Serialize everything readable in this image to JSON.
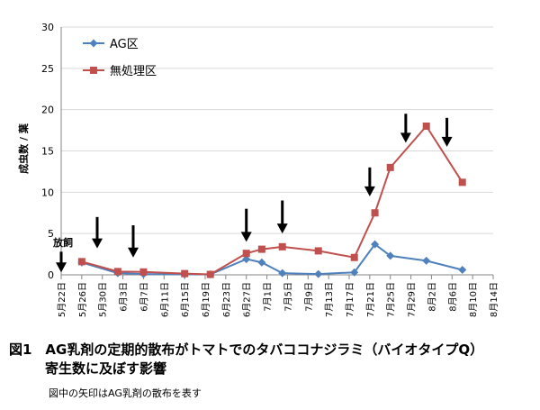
{
  "chart_data": {
    "type": "line",
    "ylabel": "成虫数 / 葉",
    "xlabel": "",
    "ylim": [
      0,
      30
    ],
    "yticks": [
      0,
      5,
      10,
      15,
      20,
      25,
      30
    ],
    "x_tick_labels": [
      "5月22日",
      "5月26日",
      "5月30日",
      "6月3日",
      "6月7日",
      "6月11日",
      "6月15日",
      "6月19日",
      "6月23日",
      "6月27日",
      "7月1日",
      "7月5日",
      "7月9日",
      "7月13日",
      "7月17日",
      "7月21日",
      "7月25日",
      "7月29日",
      "8月2日",
      "8月6日",
      "8月10日",
      "8月14日"
    ],
    "x_start": "5月22日",
    "x_end": "8月14日",
    "grid": "horizontal",
    "legend_position": "top-left",
    "series": [
      {
        "name": "AG区",
        "color": "#4f81bd",
        "marker": "diamond",
        "points": [
          {
            "x": "5月26日",
            "y": 1.5
          },
          {
            "x": "6月2日",
            "y": 0.2
          },
          {
            "x": "6月7日",
            "y": 0.1
          },
          {
            "x": "6月15日",
            "y": 0.05
          },
          {
            "x": "6月20日",
            "y": 0.05
          },
          {
            "x": "6月27日",
            "y": 1.9
          },
          {
            "x": "6月30日",
            "y": 1.5
          },
          {
            "x": "7月4日",
            "y": 0.2
          },
          {
            "x": "7月11日",
            "y": 0.1
          },
          {
            "x": "7月18日",
            "y": 0.3
          },
          {
            "x": "7月22日",
            "y": 3.7
          },
          {
            "x": "7月25日",
            "y": 2.3
          },
          {
            "x": "8月1日",
            "y": 1.7
          },
          {
            "x": "8月8日",
            "y": 0.6
          }
        ]
      },
      {
        "name": "無処理区",
        "color": "#c0504d",
        "marker": "square",
        "points": [
          {
            "x": "5月26日",
            "y": 1.6
          },
          {
            "x": "6月2日",
            "y": 0.4
          },
          {
            "x": "6月7日",
            "y": 0.35
          },
          {
            "x": "6月15日",
            "y": 0.15
          },
          {
            "x": "6月20日",
            "y": 0.05
          },
          {
            "x": "6月27日",
            "y": 2.6
          },
          {
            "x": "6月30日",
            "y": 3.1
          },
          {
            "x": "7月4日",
            "y": 3.4
          },
          {
            "x": "7月11日",
            "y": 2.9
          },
          {
            "x": "7月18日",
            "y": 2.1
          },
          {
            "x": "7月22日",
            "y": 7.5
          },
          {
            "x": "7月25日",
            "y": 13.0
          },
          {
            "x": "8月1日",
            "y": 18.0
          },
          {
            "x": "8月8日",
            "y": 11.2
          }
        ]
      }
    ],
    "annotations": [
      {
        "text": "放飼",
        "x": "5月22日",
        "y": 3.5
      }
    ],
    "spray_arrows": [
      {
        "x": "5月29日",
        "y_top": 7.0,
        "y_tip": 3.2
      },
      {
        "x": "6月5日",
        "y_top": 6.0,
        "y_tip": 2.1
      },
      {
        "x": "6月27日",
        "y_top": 8.0,
        "y_tip": 4.0
      },
      {
        "x": "7月4日",
        "y_top": 9.0,
        "y_tip": 5.0
      },
      {
        "x": "7月21日",
        "y_top": 13.0,
        "y_tip": 9.5
      },
      {
        "x": "7月28日",
        "y_top": 19.5,
        "y_tip": 16.0
      },
      {
        "x": "8月5日",
        "y_top": 19.0,
        "y_tip": 15.5
      }
    ],
    "release_arrow": {
      "x": "5月22日",
      "y_top": 2.8,
      "y_tip": 0.3
    }
  },
  "caption": {
    "title_line1": "図1　AG乳剤の定期的散布がトマトでのタバココナジラミ（バイオタイプQ）",
    "title_line2": "寄生数に及ぼす影響",
    "note": "図中の矢印はAG乳剤の散布を表す"
  }
}
